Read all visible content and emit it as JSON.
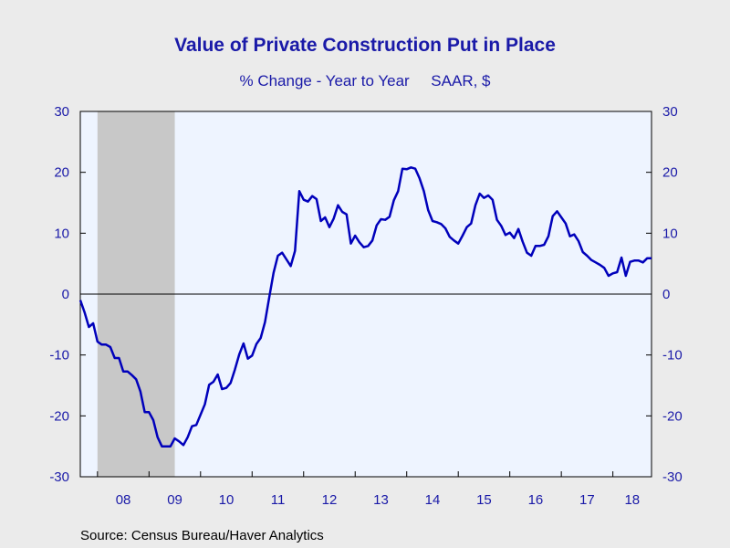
{
  "chart_data": {
    "type": "line",
    "title": "Value of Private Construction Put in Place",
    "subtitle": "% Change - Year to Year     SAAR, $",
    "source": "Source:  Census Bureau/Haver Analytics",
    "xlabel": "",
    "ylabel": "",
    "ylim": [
      -30,
      30
    ],
    "yticks": [
      30,
      20,
      10,
      0,
      -10,
      -20,
      -30
    ],
    "xlim": [
      "2007-09",
      "2018-10"
    ],
    "year_labels": [
      "08",
      "09",
      "10",
      "11",
      "12",
      "13",
      "14",
      "15",
      "16",
      "17",
      "18"
    ],
    "recession": {
      "start": "2008-01",
      "end": "2009-06"
    },
    "line_color": "#0000bb",
    "plot_background": "#eef4ff",
    "recession_color": "#c8c8c8",
    "grid": false,
    "series": [
      {
        "x": [
          "2007-09",
          "2007-10",
          "2007-11",
          "2007-12",
          "2008-01",
          "2008-02",
          "2008-03",
          "2008-04",
          "2008-05",
          "2008-06",
          "2008-07",
          "2008-08",
          "2008-09",
          "2008-10",
          "2008-11",
          "2008-12",
          "2009-01",
          "2009-02",
          "2009-03",
          "2009-04",
          "2009-05",
          "2009-06",
          "2009-07",
          "2009-08",
          "2009-09",
          "2009-10",
          "2009-11",
          "2009-12",
          "2010-01",
          "2010-02",
          "2010-03",
          "2010-04",
          "2010-05",
          "2010-06",
          "2010-07",
          "2010-08",
          "2010-09",
          "2010-10",
          "2010-11",
          "2010-12",
          "2011-01",
          "2011-02",
          "2011-03",
          "2011-04",
          "2011-05",
          "2011-06",
          "2011-07",
          "2011-08",
          "2011-09",
          "2011-10",
          "2011-11",
          "2011-12",
          "2012-01",
          "2012-02",
          "2012-03",
          "2012-04",
          "2012-05",
          "2012-06",
          "2012-07",
          "2012-08",
          "2012-09",
          "2012-10",
          "2012-11",
          "2012-12",
          "2013-01",
          "2013-02",
          "2013-03",
          "2013-04",
          "2013-05",
          "2013-06",
          "2013-07",
          "2013-08",
          "2013-09",
          "2013-10",
          "2013-11",
          "2013-12",
          "2014-01",
          "2014-02",
          "2014-03",
          "2014-04",
          "2014-05",
          "2014-06",
          "2014-07",
          "2014-08",
          "2014-09",
          "2014-10",
          "2014-11",
          "2014-12",
          "2015-01",
          "2015-02",
          "2015-03",
          "2015-04",
          "2015-05",
          "2015-06",
          "2015-07",
          "2015-08",
          "2015-09",
          "2015-10",
          "2015-11",
          "2015-12",
          "2016-01",
          "2016-02",
          "2016-03",
          "2016-04",
          "2016-05",
          "2016-06",
          "2016-07",
          "2016-08",
          "2016-09",
          "2016-10",
          "2016-11",
          "2016-12",
          "2017-01",
          "2017-02",
          "2017-03",
          "2017-04",
          "2017-05",
          "2017-06",
          "2017-07",
          "2017-08",
          "2017-09",
          "2017-10",
          "2017-11",
          "2017-12",
          "2018-01",
          "2018-02",
          "2018-03",
          "2018-04",
          "2018-05",
          "2018-06",
          "2018-07",
          "2018-08",
          "2018-09",
          "2018-10"
        ],
        "values": [
          -1.0,
          -3.0,
          -5.4,
          -4.8,
          -7.8,
          -8.3,
          -8.3,
          -8.7,
          -10.5,
          -10.5,
          -12.7,
          -12.7,
          -13.3,
          -14.0,
          -16.0,
          -19.4,
          -19.4,
          -20.7,
          -23.5,
          -25.0,
          -25.0,
          -25.0,
          -23.7,
          -24.2,
          -24.8,
          -23.5,
          -21.7,
          -21.5,
          -19.8,
          -18.1,
          -14.9,
          -14.4,
          -13.2,
          -15.6,
          -15.4,
          -14.6,
          -12.4,
          -9.9,
          -8.1,
          -10.6,
          -10.1,
          -8.2,
          -7.2,
          -4.6,
          -0.5,
          3.5,
          6.3,
          6.8,
          5.7,
          4.6,
          7.1,
          16.9,
          15.5,
          15.2,
          16.1,
          15.6,
          12.0,
          12.6,
          11.0,
          12.4,
          14.6,
          13.5,
          13.1,
          8.3,
          9.6,
          8.5,
          7.7,
          7.9,
          8.8,
          11.3,
          12.3,
          12.2,
          12.7,
          15.4,
          16.9,
          20.6,
          20.5,
          20.8,
          20.6,
          19.0,
          16.9,
          13.8,
          12.0,
          11.8,
          11.5,
          10.8,
          9.4,
          8.8,
          8.3,
          9.6,
          11.0,
          11.6,
          14.6,
          16.5,
          15.8,
          16.2,
          15.5,
          12.2,
          11.2,
          9.7,
          10.1,
          9.2,
          10.7,
          8.6,
          6.8,
          6.3,
          7.9,
          7.9,
          8.1,
          9.5,
          12.8,
          13.6,
          12.6,
          11.6,
          9.5,
          9.8,
          8.7,
          6.9,
          6.3,
          5.6,
          5.2,
          4.8,
          4.3,
          3.0,
          3.4,
          3.6,
          6.0,
          3.0,
          5.3,
          5.5,
          5.5,
          5.2,
          5.9,
          5.9
        ]
      }
    ]
  }
}
